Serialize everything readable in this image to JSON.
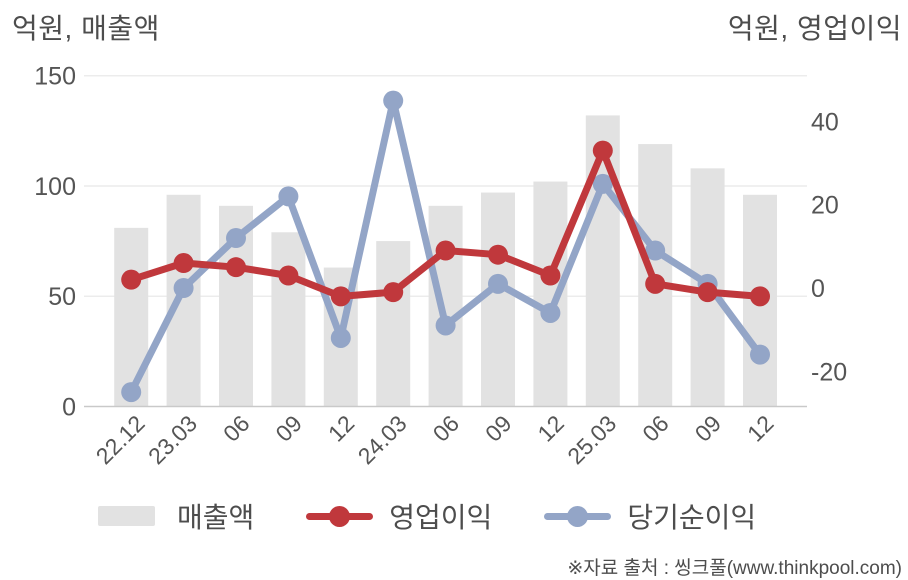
{
  "page": {
    "background": "#ffffff"
  },
  "chart_data": {
    "type": "combo-bar-line",
    "categories": [
      "22.12",
      "23.03",
      "06",
      "09",
      "12",
      "24.03",
      "06",
      "09",
      "12",
      "25.03",
      "06",
      "09",
      "12"
    ],
    "series": [
      {
        "key": "revenue",
        "name": "매출액",
        "type": "bar",
        "axis": "left",
        "color": "#e2e2e2",
        "values": [
          81,
          96,
          91,
          79,
          63,
          75,
          91,
          97,
          102,
          132,
          119,
          108,
          96
        ]
      },
      {
        "key": "operating-profit",
        "name": "영업이익",
        "type": "line",
        "axis": "right",
        "color": "#c0383c",
        "values": [
          2,
          6,
          5,
          3,
          -2,
          -1,
          9,
          8,
          3,
          33,
          1,
          -1,
          -2
        ]
      },
      {
        "key": "net-profit",
        "name": "당기순이익",
        "type": "line",
        "axis": "right",
        "color": "#93a5c7",
        "values": [
          -25,
          0,
          12,
          22,
          -12,
          45,
          -9,
          1,
          -6,
          25,
          9,
          1,
          -16
        ]
      }
    ],
    "left_axis": {
      "title": "억원, 매출액",
      "ticks": [
        150,
        100,
        50,
        0
      ],
      "range": [
        0,
        150
      ]
    },
    "right_axis": {
      "title": "억원, 영업이익",
      "ticks": [
        40,
        20,
        0,
        -20
      ],
      "range": [
        -28.6,
        50.9
      ]
    },
    "legend": [
      "매출액",
      "영업이익",
      "당기순이익"
    ],
    "legend_position": "bottom",
    "grid": "horizontal",
    "draw_order_note": "operating-profit line drawn on top of net-profit line",
    "source_note": "※자료 출처 : 씽크풀(www.thinkpool.com)",
    "colors": {
      "grid_line": "#ececec",
      "axis_line": "#c9c9c9",
      "tick_text": "#555555",
      "label_text": "#555555",
      "title_text": "#4d4d4d"
    }
  }
}
